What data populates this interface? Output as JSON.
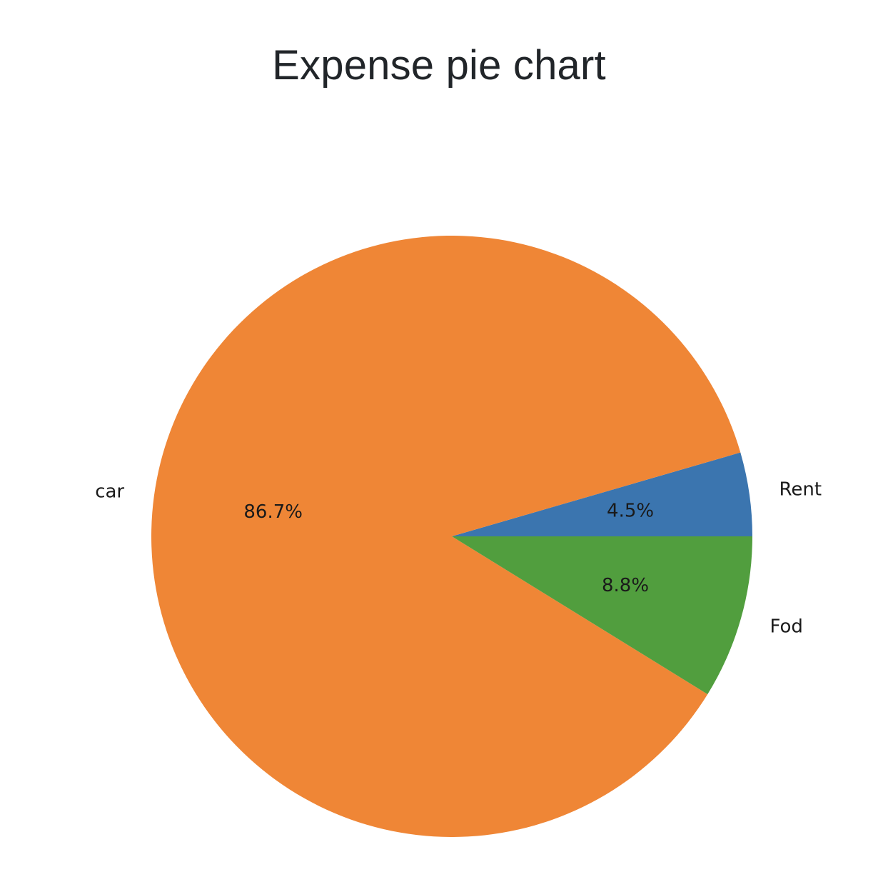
{
  "header": {
    "title": "Expense pie chart"
  },
  "chart_data": {
    "type": "pie",
    "title": "Expense pie chart",
    "categories": [
      "Rent",
      "car",
      "Fod"
    ],
    "values": [
      4.5,
      86.7,
      8.8
    ],
    "labels": [
      "4.5%",
      "86.7%",
      "8.8%"
    ],
    "colors": [
      "#3b75af",
      "#ef8636",
      "#519e3e"
    ],
    "start_angle_deg": 0,
    "direction": "counterclockwise",
    "legend": "none"
  }
}
